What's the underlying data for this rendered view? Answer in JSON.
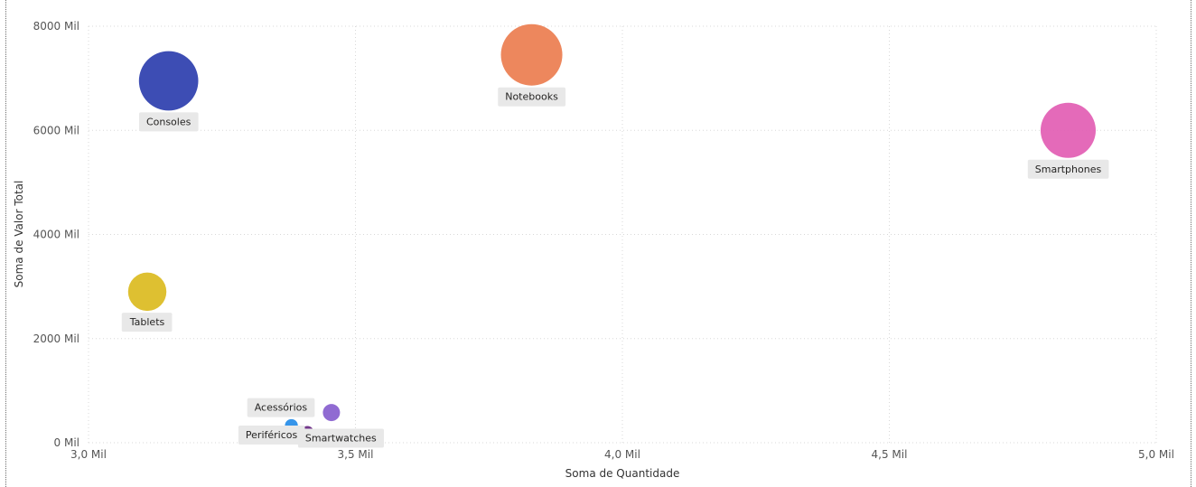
{
  "chart_data": {
    "type": "scatter",
    "xlabel": "Soma de Quantidade",
    "ylabel": "Soma de Valor Total",
    "xlim": [
      3000,
      5000
    ],
    "ylim": [
      0,
      8000000
    ],
    "x_ticks": [
      3000,
      3500,
      4000,
      4500,
      5000
    ],
    "x_tick_labels": [
      "3,0 Mil",
      "3,5 Mil",
      "4,0 Mil",
      "4,5 Mil",
      "5,0 Mil"
    ],
    "y_ticks": [
      0,
      2000000,
      4000000,
      6000000,
      8000000
    ],
    "y_tick_labels": [
      "0 Mil",
      "2000 Mil",
      "4000 Mil",
      "6000 Mil",
      "8000 Mil"
    ],
    "grid": true,
    "points": [
      {
        "label": "Consoles",
        "x": 3150,
        "y": 6950000,
        "size": 6950000,
        "color": "#3343b0"
      },
      {
        "label": "Notebooks",
        "x": 3830,
        "y": 7450000,
        "size": 7450000,
        "color": "#ec8154"
      },
      {
        "label": "Smartphones",
        "x": 4835,
        "y": 6000000,
        "size": 6000000,
        "color": "#e362b5"
      },
      {
        "label": "Tablets",
        "x": 3110,
        "y": 2900000,
        "size": 2900000,
        "color": "#dcbd26"
      },
      {
        "label": "Acessórios",
        "x": 3455,
        "y": 580000,
        "size": 580000,
        "color": "#8a63d0"
      },
      {
        "label": "Periféricos",
        "x": 3380,
        "y": 330000,
        "size": 330000,
        "color": "#2b8fe9"
      },
      {
        "label": "Smartwatches",
        "x": 3410,
        "y": 200000,
        "size": 200000,
        "color": "#6b2d85"
      }
    ]
  }
}
